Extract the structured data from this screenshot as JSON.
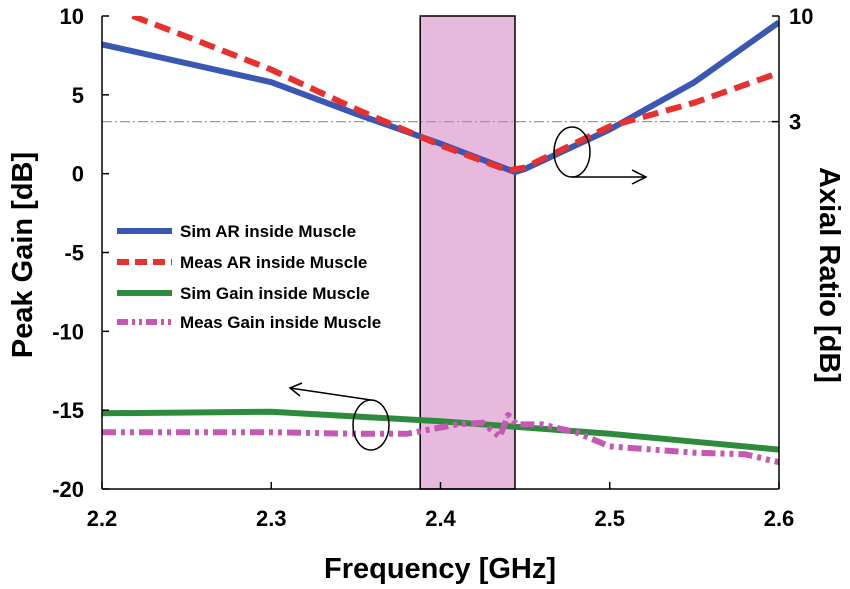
{
  "chart_data": {
    "type": "line",
    "xlabel": "Frequency [GHz]",
    "ylabel": "Peak Gain [dB]",
    "y2label": "Axial Ratio [dB]",
    "xlim": [
      2.2,
      2.6
    ],
    "ylim": [
      -20,
      10
    ],
    "y2_tick_labels": [
      {
        "label": "10",
        "at_left_axis_value": 10
      },
      {
        "label": "3",
        "at_left_axis_value": 3.3
      }
    ],
    "x_ticks": [
      "2.2",
      "2.3",
      "2.4",
      "2.5",
      "2.6"
    ],
    "y_ticks": [
      "10",
      "5",
      "0",
      "-5",
      "-10",
      "-15",
      "-20"
    ],
    "highlight_band": {
      "x_start": 2.388,
      "x_end": 2.444,
      "color": "#e7b9dc"
    },
    "reference_line": {
      "y": 3.3,
      "style": "dash-dot",
      "color": "#9a9a9a"
    },
    "series": [
      {
        "name": "Sim AR inside Muscle",
        "axis": "right",
        "color": "#3a57b4",
        "style": "solid",
        "x": [
          2.2,
          2.3,
          2.35,
          2.4,
          2.444,
          2.45,
          2.5,
          2.55,
          2.6
        ],
        "y": [
          8.2,
          5.8,
          3.8,
          1.9,
          0.1,
          0.3,
          2.8,
          5.8,
          9.6
        ]
      },
      {
        "name": "Meas AR inside Muscle",
        "axis": "right",
        "color": "#e8312f",
        "style": "dash",
        "x": [
          2.218,
          2.25,
          2.3,
          2.35,
          2.4,
          2.44,
          2.45,
          2.5,
          2.55,
          2.6
        ],
        "y": [
          10.0,
          8.7,
          6.6,
          4.1,
          1.8,
          0.2,
          0.4,
          3.0,
          4.5,
          6.4
        ]
      },
      {
        "name": "Sim Gain inside Muscle",
        "axis": "left",
        "color": "#2e8b3e",
        "style": "solid",
        "x": [
          2.2,
          2.3,
          2.35,
          2.4,
          2.45,
          2.5,
          2.55,
          2.6
        ],
        "y": [
          -15.2,
          -15.1,
          -15.4,
          -15.7,
          -16.1,
          -16.5,
          -17.0,
          -17.5
        ]
      },
      {
        "name": "Meas Gain inside Muscle",
        "axis": "left",
        "color": "#c458b3",
        "style": "dash-dot-dot",
        "x": [
          2.2,
          2.25,
          2.3,
          2.35,
          2.38,
          2.41,
          2.425,
          2.435,
          2.44,
          2.445,
          2.46,
          2.48,
          2.5,
          2.55,
          2.58,
          2.6
        ],
        "y": [
          -16.4,
          -16.4,
          -16.4,
          -16.5,
          -16.5,
          -15.9,
          -15.8,
          -16.7,
          -15.3,
          -15.9,
          -15.9,
          -16.4,
          -17.3,
          -17.7,
          -17.8,
          -18.3
        ]
      }
    ],
    "annotations": [
      {
        "shape": "ellipse",
        "target_series": "Sim AR inside Muscle",
        "arrow": "right"
      },
      {
        "shape": "ellipse",
        "target_series": "Sim Gain inside Muscle",
        "arrow": "left"
      }
    ]
  }
}
